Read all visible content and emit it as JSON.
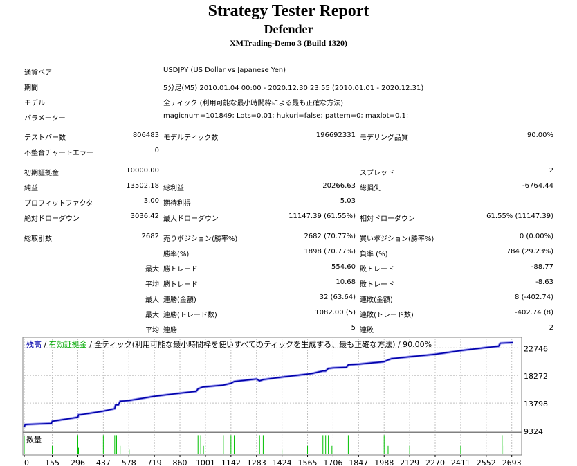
{
  "header": {
    "title": "Strategy Tester Report",
    "expert": "Defender",
    "server": "XMTrading-Demo 3 (Build 1320)"
  },
  "info_rows": [
    {
      "label": "通貨ペア",
      "value": "USDJPY (US Dollar vs Japanese Yen)"
    },
    {
      "label": "期間",
      "value": "5分足(M5) 2010.01.04 00:00 - 2020.12.30 23:55 (2010.01.01 - 2020.12.31)"
    },
    {
      "label": "モデル",
      "value": "全ティック (利用可能な最小時間枠による最も正確な方法)"
    },
    {
      "label": "パラメーター",
      "value": "magicnum=101849; Lots=0.01; hukuri=false; pattern=0; maxlot=0.1;"
    }
  ],
  "stat_rows": [
    [
      "テストバー数",
      "806483",
      "モデルティック数",
      "196692331",
      "モデリング品質",
      "90.00%"
    ],
    [
      "不整合チャートエラー",
      "0",
      "",
      "",
      "",
      ""
    ],
    [
      "初期証拠金",
      "10000.00",
      "",
      "",
      "スプレッド",
      "2"
    ],
    [
      "純益",
      "13502.18",
      "総利益",
      "20266.63",
      "総損失",
      "-6764.44"
    ],
    [
      "プロフィットファクタ",
      "3.00",
      "期待利得",
      "5.03",
      "",
      ""
    ],
    [
      "絶対ドローダウン",
      "3036.42",
      "最大ドローダウン",
      "11147.39 (61.55%)",
      "相対ドローダウン",
      "61.55% (11147.39)"
    ],
    [
      "総取引数",
      "2682",
      "売りポジション(勝率%)",
      "2682 (70.77%)",
      "買いポジション(勝率%)",
      "0 (0.00%)"
    ],
    [
      "",
      "",
      "勝率(%)",
      "1898 (70.77%)",
      "負率 (%)",
      "784 (29.23%)"
    ],
    [
      "",
      "最大",
      "勝トレード",
      "554.60",
      "敗トレード",
      "-88.77"
    ],
    [
      "",
      "平均",
      "勝トレード",
      "10.68",
      "敗トレード",
      "-8.63"
    ],
    [
      "",
      "最大",
      "連勝(金額)",
      "32 (63.64)",
      "連敗(金額)",
      "8 (-402.74)"
    ],
    [
      "",
      "最大",
      "連勝(トレード数)",
      "1082.00 (5)",
      "連敗(トレード数)",
      "-402.74 (8)"
    ],
    [
      "",
      "平均",
      "連勝",
      "5",
      "連敗",
      "2"
    ]
  ],
  "chart_data": {
    "type": "line",
    "legend": {
      "balance": "残高",
      "sep1": " / ",
      "equity": "有効証拠金",
      "rest": " / 全ティック(利用可能な最小時間枠を使いすべてのティックを生成する、最も正確な方法) / 90.00%"
    },
    "volume_label": "数量",
    "x_ticks": [
      "0",
      "155",
      "296",
      "437",
      "578",
      "719",
      "860",
      "1001",
      "1142",
      "1283",
      "1424",
      "1565",
      "1706",
      "1847",
      "1988",
      "2129",
      "2270",
      "2411",
      "2552",
      "2693"
    ],
    "y_ticks": [
      "22746",
      "18272",
      "13798",
      "9324"
    ],
    "ylim": [
      9324,
      24238
    ],
    "xlim": [
      0,
      2740
    ],
    "grid": true,
    "colors": {
      "balance": "#0000aa",
      "equity": "#00aa00",
      "volume": "#00c000",
      "grid": "#c0c0c0"
    },
    "balance": [
      [
        0,
        9900
      ],
      [
        5,
        10300
      ],
      [
        20,
        10350
      ],
      [
        150,
        10500
      ],
      [
        155,
        10850
      ],
      [
        296,
        11500
      ],
      [
        300,
        11900
      ],
      [
        310,
        11900
      ],
      [
        437,
        12500
      ],
      [
        500,
        12900
      ],
      [
        505,
        13500
      ],
      [
        520,
        13500
      ],
      [
        530,
        14100
      ],
      [
        578,
        14200
      ],
      [
        719,
        14900
      ],
      [
        860,
        15400
      ],
      [
        950,
        15700
      ],
      [
        960,
        16100
      ],
      [
        985,
        16400
      ],
      [
        1100,
        16700
      ],
      [
        1142,
        17000
      ],
      [
        1160,
        17300
      ],
      [
        1283,
        17700
      ],
      [
        1300,
        17400
      ],
      [
        1320,
        17600
      ],
      [
        1424,
        18000
      ],
      [
        1565,
        18500
      ],
      [
        1590,
        18600
      ],
      [
        1650,
        19000
      ],
      [
        1665,
        19000
      ],
      [
        1680,
        19400
      ],
      [
        1706,
        19500
      ],
      [
        1780,
        19600
      ],
      [
        1790,
        20000
      ],
      [
        1847,
        20100
      ],
      [
        1988,
        20500
      ],
      [
        2010,
        20800
      ],
      [
        2030,
        21000
      ],
      [
        2129,
        21300
      ],
      [
        2270,
        21700
      ],
      [
        2411,
        22300
      ],
      [
        2552,
        22800
      ],
      [
        2620,
        23000
      ],
      [
        2630,
        23500
      ],
      [
        2700,
        23600
      ]
    ],
    "volume": [
      [
        0,
        0.9
      ],
      [
        155,
        0.4
      ],
      [
        296,
        0.95
      ],
      [
        300,
        0.3
      ],
      [
        437,
        0.95
      ],
      [
        500,
        0.95
      ],
      [
        510,
        0.95
      ],
      [
        530,
        0.4
      ],
      [
        580,
        0.2
      ],
      [
        960,
        0.95
      ],
      [
        975,
        0.95
      ],
      [
        990,
        0.4
      ],
      [
        1100,
        0.95
      ],
      [
        1142,
        0.95
      ],
      [
        1160,
        0.95
      ],
      [
        1300,
        0.95
      ],
      [
        1320,
        0.95
      ],
      [
        1424,
        0.2
      ],
      [
        1565,
        0.4
      ],
      [
        1650,
        0.95
      ],
      [
        1665,
        0.95
      ],
      [
        1680,
        0.95
      ],
      [
        1700,
        0.4
      ],
      [
        1790,
        0.95
      ],
      [
        1988,
        0.95
      ],
      [
        2010,
        0.4
      ],
      [
        2129,
        0.4
      ],
      [
        2411,
        0.4
      ],
      [
        2640,
        0.95
      ],
      [
        2650,
        0.4
      ]
    ]
  }
}
